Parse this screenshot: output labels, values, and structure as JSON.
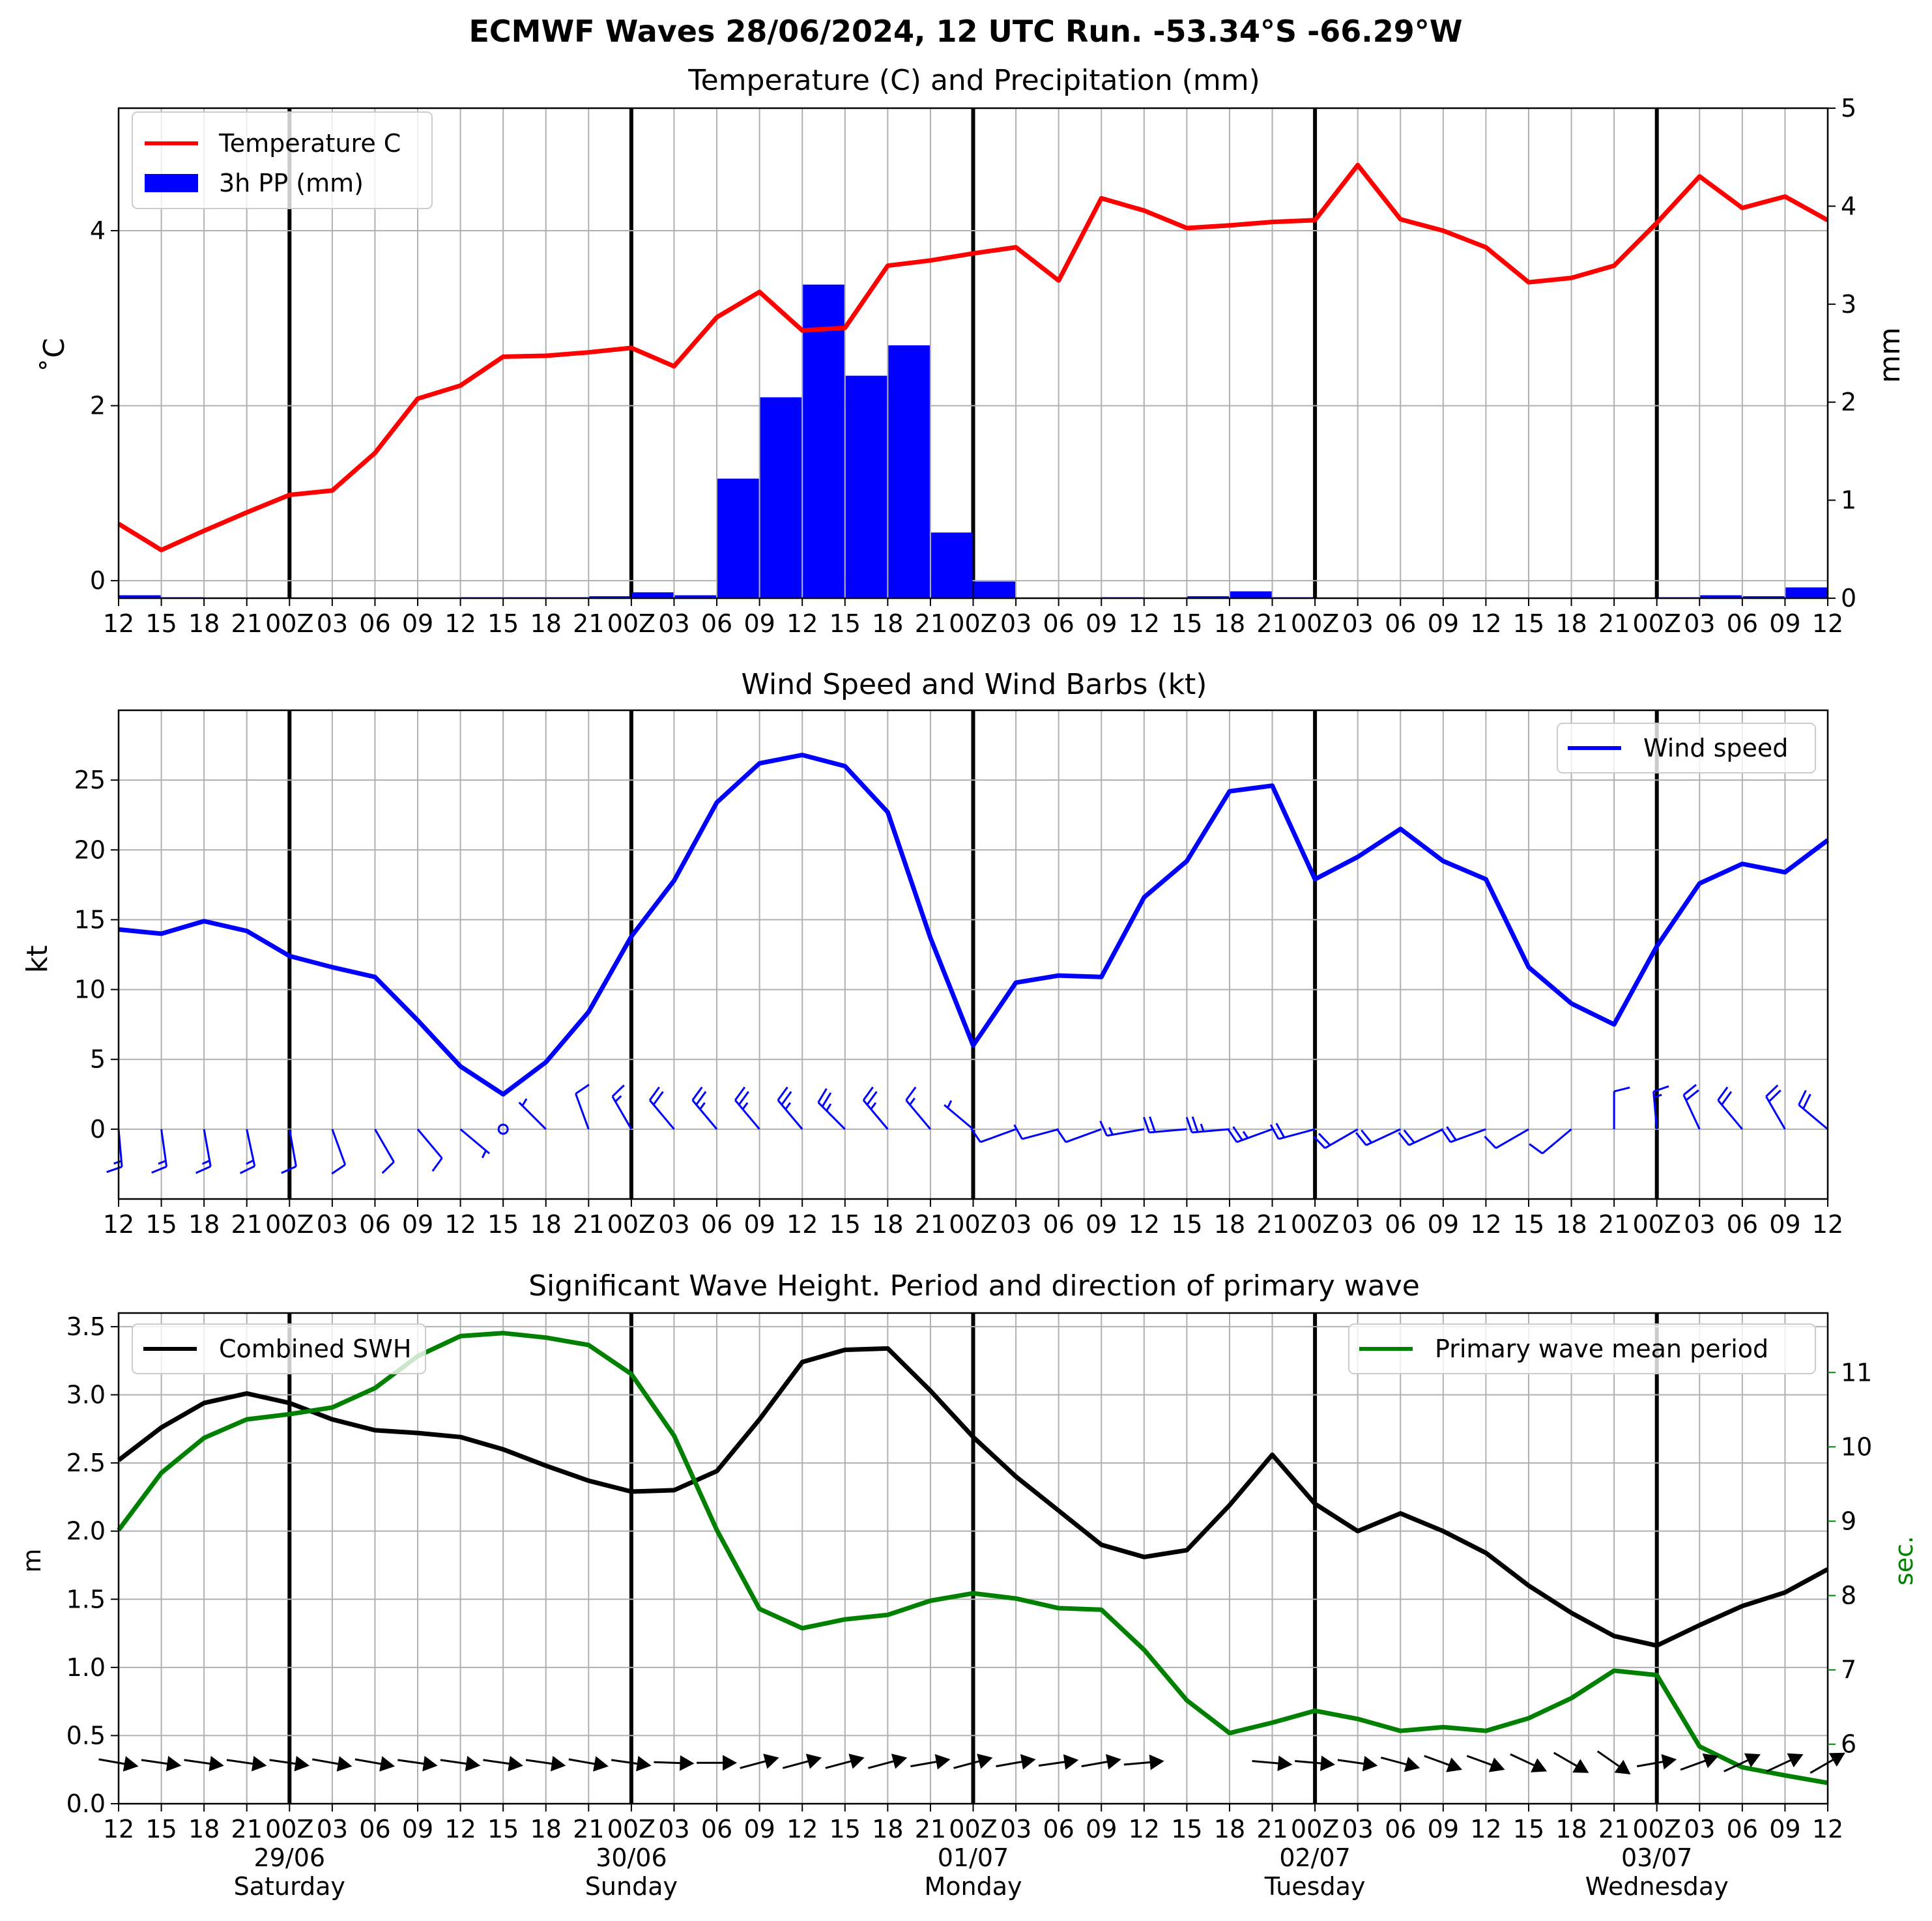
{
  "suptitle": "ECMWF Waves 28/06/2024, 12 UTC Run. -53.34°S -66.29°W",
  "chart_data": [
    {
      "type": "line",
      "title": "Temperature (C) and Precipitation (mm)",
      "xlabel": "",
      "ylabel": "˚C",
      "ylabel_right": "mm",
      "ylim": [
        -0.2,
        5.4
      ],
      "ylim_right": [
        0,
        5
      ],
      "yticks": [
        "0",
        "2",
        "4"
      ],
      "yticks_right": [
        "0",
        "1",
        "2",
        "3",
        "4",
        "5"
      ],
      "xtick_labels": [
        "12",
        "15",
        "18",
        "21",
        "00Z",
        "03",
        "06",
        "09",
        "12",
        "15",
        "18",
        "21",
        "00Z",
        "03",
        "06",
        "09",
        "12",
        "15",
        "18",
        "21",
        "00Z",
        "03",
        "06",
        "09",
        "12",
        "15",
        "18",
        "21",
        "00Z",
        "03",
        "06",
        "09",
        "12",
        "15",
        "18",
        "21",
        "00Z",
        "03",
        "06",
        "09",
        "12"
      ],
      "grid": true,
      "legend_position": "top-left",
      "series": [
        {
          "name": "Temperature C",
          "type": "line",
          "color": "#ff0000",
          "axis": "left",
          "values": [
            0.65,
            0.35,
            0.57,
            0.78,
            0.98,
            1.03,
            1.46,
            2.08,
            2.23,
            2.56,
            2.57,
            2.61,
            2.66,
            2.45,
            3.01,
            3.3,
            2.86,
            2.89,
            3.6,
            3.66,
            3.74,
            3.81,
            3.43,
            4.37,
            4.23,
            4.03,
            4.06,
            4.1,
            4.12,
            4.75,
            4.13,
            4.0,
            3.81,
            3.41,
            3.46,
            3.6,
            4.09,
            4.62,
            4.26,
            4.39,
            4.12
          ]
        },
        {
          "name": "3h PP (mm)",
          "type": "bar",
          "color": "#0000ff",
          "axis": "right",
          "values": [
            0.05,
            0.03,
            0.01,
            0,
            0,
            0,
            0,
            0,
            0,
            0.01,
            0.01,
            0.01,
            0.02,
            0.06,
            0.03,
            1.22,
            2.05,
            3.2,
            2.27,
            2.58,
            0.67,
            0.17,
            0,
            0,
            0.01,
            0,
            0.02,
            0.07,
            0.01,
            0,
            0,
            0,
            0,
            0,
            0,
            0,
            0,
            0.01,
            0.03,
            0.02,
            0.11
          ]
        }
      ]
    },
    {
      "type": "line",
      "title": "Wind Speed and Wind Barbs (kt)",
      "xlabel": "",
      "ylabel": "kt",
      "ylim": [
        -5,
        30
      ],
      "yticks": [
        "0",
        "5",
        "10",
        "15",
        "20",
        "25"
      ],
      "xtick_labels": [
        "12",
        "15",
        "18",
        "21",
        "00Z",
        "03",
        "06",
        "09",
        "12",
        "15",
        "18",
        "21",
        "00Z",
        "03",
        "06",
        "09",
        "12",
        "15",
        "18",
        "21",
        "00Z",
        "03",
        "06",
        "09",
        "12",
        "15",
        "18",
        "21",
        "00Z",
        "03",
        "06",
        "09",
        "12",
        "15",
        "18",
        "21",
        "00Z",
        "03",
        "06",
        "09",
        "12"
      ],
      "grid": true,
      "legend_position": "top-right",
      "series": [
        {
          "name": "Wind speed",
          "color": "#0000ff",
          "values": [
            14.3,
            14.0,
            14.9,
            14.2,
            12.4,
            11.6,
            10.9,
            7.8,
            4.5,
            2.5,
            4.8,
            8.4,
            13.8,
            17.8,
            23.4,
            26.2,
            26.8,
            26.0,
            22.7,
            13.7,
            6.0,
            10.5,
            11.0,
            10.9,
            16.6,
            19.2,
            24.2,
            24.6,
            17.9,
            19.5,
            21.5,
            19.2,
            17.9,
            11.6,
            9.0,
            7.5,
            13.1,
            17.6,
            19.0,
            18.4,
            20.7
          ]
        }
      ],
      "wind_barbs": {
        "color": "#0000ff",
        "direction_deg": [
          175,
          172,
          170,
          168,
          170,
          160,
          150,
          140,
          130,
          0,
          315,
          340,
          330,
          320,
          320,
          320,
          320,
          315,
          320,
          320,
          310,
          250,
          255,
          250,
          260,
          265,
          265,
          250,
          255,
          240,
          245,
          245,
          250,
          240,
          230,
          0,
          355,
          335,
          320,
          330,
          310
        ]
      }
    },
    {
      "type": "line",
      "title": "Significant Wave Height. Period and direction of primary wave",
      "xlabel": "",
      "ylabel": "m",
      "ylabel_right": "sec.",
      "ylim": [
        0,
        3.6
      ],
      "ylim_right": [
        5.2,
        11.8
      ],
      "yticks": [
        "0.0",
        "0.5",
        "1.0",
        "1.5",
        "2.0",
        "2.5",
        "3.0",
        "3.5"
      ],
      "yticks_right": [
        "6",
        "7",
        "8",
        "9",
        "10",
        "11"
      ],
      "xtick_labels": [
        "12",
        "15",
        "18",
        "21",
        "00Z",
        "03",
        "06",
        "09",
        "12",
        "15",
        "18",
        "21",
        "00Z",
        "03",
        "06",
        "09",
        "12",
        "15",
        "18",
        "21",
        "00Z",
        "03",
        "06",
        "09",
        "12",
        "15",
        "18",
        "21",
        "00Z",
        "03",
        "06",
        "09",
        "12",
        "15",
        "18",
        "21",
        "00Z",
        "03",
        "06",
        "09",
        "12"
      ],
      "date_labels": [
        {
          "index": 4,
          "date": "29/06",
          "day": "Saturday"
        },
        {
          "index": 12,
          "date": "30/06",
          "day": "Sunday"
        },
        {
          "index": 20,
          "date": "01/07",
          "day": "Monday"
        },
        {
          "index": 28,
          "date": "02/07",
          "day": "Tuesday"
        },
        {
          "index": 36,
          "date": "03/07",
          "day": "Wednesday"
        }
      ],
      "grid": true,
      "series": [
        {
          "name": "Combined SWH",
          "color": "#000000",
          "axis": "left",
          "legend_position": "top-left",
          "values": [
            2.52,
            2.76,
            2.94,
            3.01,
            2.94,
            2.82,
            2.74,
            2.72,
            2.69,
            2.6,
            2.48,
            2.37,
            2.29,
            2.3,
            2.44,
            2.82,
            3.24,
            3.33,
            3.34,
            3.03,
            2.69,
            2.4,
            2.15,
            1.9,
            1.81,
            1.86,
            2.19,
            2.56,
            2.2,
            2.0,
            2.13,
            2.0,
            1.84,
            1.6,
            1.4,
            1.23,
            1.16,
            1.31,
            1.45,
            1.55,
            1.72
          ]
        },
        {
          "name": "Primary wave mean period",
          "color": "#008000",
          "axis": "right",
          "legend_position": "top-right",
          "values": [
            8.88,
            9.65,
            10.12,
            10.37,
            10.44,
            10.53,
            10.79,
            11.22,
            11.49,
            11.53,
            11.47,
            11.37,
            10.98,
            10.15,
            8.88,
            7.82,
            7.56,
            7.68,
            7.74,
            7.93,
            8.03,
            7.96,
            7.83,
            7.81,
            7.27,
            6.59,
            6.15,
            6.29,
            6.45,
            6.34,
            6.18,
            6.23,
            6.18,
            6.35,
            6.62,
            6.99,
            6.93,
            5.97,
            5.69,
            5.58,
            5.48
          ]
        }
      ],
      "wave_direction_arrows": {
        "color": "#000000",
        "direction_deg": [
          280,
          278,
          278,
          278,
          278,
          280,
          280,
          278,
          278,
          278,
          278,
          280,
          278,
          272,
          270,
          255,
          255,
          255,
          255,
          260,
          255,
          260,
          262,
          260,
          265,
          null,
          null,
          275,
          275,
          278,
          285,
          290,
          290,
          295,
          300,
          305,
          260,
          250,
          245,
          245,
          240
        ]
      }
    }
  ]
}
